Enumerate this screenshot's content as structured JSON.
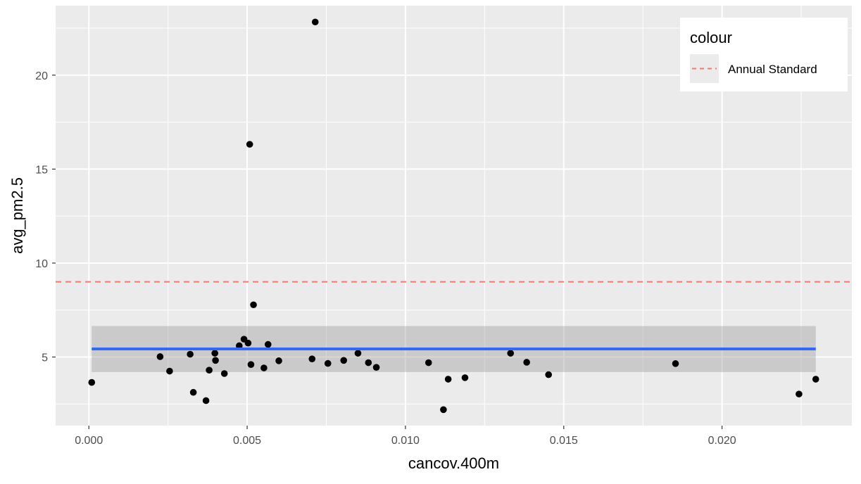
{
  "chart_data": {
    "type": "scatter",
    "xlabel": "cancov.400m",
    "ylabel": "avg_pm2.5",
    "xlim": [
      -0.00105,
      0.0241
    ],
    "ylim": [
      1.35,
      23.7
    ],
    "x_ticks": [
      0.0,
      0.005,
      0.01,
      0.015,
      0.02
    ],
    "x_tick_labels": [
      "0.000",
      "0.005",
      "0.010",
      "0.015",
      "0.020"
    ],
    "y_ticks": [
      5,
      10,
      15,
      20
    ],
    "y_tick_labels": [
      "5",
      "10",
      "15",
      "20"
    ],
    "grid": true,
    "points": [
      {
        "x": 9e-05,
        "y": 3.65
      },
      {
        "x": 0.00225,
        "y": 5.02
      },
      {
        "x": 0.00255,
        "y": 4.25
      },
      {
        "x": 0.0032,
        "y": 5.15
      },
      {
        "x": 0.0033,
        "y": 3.12
      },
      {
        "x": 0.0037,
        "y": 2.68
      },
      {
        "x": 0.0038,
        "y": 4.3
      },
      {
        "x": 0.00398,
        "y": 5.2
      },
      {
        "x": 0.004,
        "y": 4.82
      },
      {
        "x": 0.00428,
        "y": 4.12
      },
      {
        "x": 0.00475,
        "y": 5.6
      },
      {
        "x": 0.0049,
        "y": 5.95
      },
      {
        "x": 0.00503,
        "y": 5.74
      },
      {
        "x": 0.00508,
        "y": 16.32
      },
      {
        "x": 0.00512,
        "y": 4.6
      },
      {
        "x": 0.0052,
        "y": 7.78
      },
      {
        "x": 0.00553,
        "y": 4.42
      },
      {
        "x": 0.00566,
        "y": 5.67
      },
      {
        "x": 0.006,
        "y": 4.8
      },
      {
        "x": 0.00705,
        "y": 4.9
      },
      {
        "x": 0.00715,
        "y": 22.83
      },
      {
        "x": 0.00755,
        "y": 4.66
      },
      {
        "x": 0.00805,
        "y": 4.82
      },
      {
        "x": 0.0085,
        "y": 5.2
      },
      {
        "x": 0.00883,
        "y": 4.7
      },
      {
        "x": 0.00908,
        "y": 4.45
      },
      {
        "x": 0.01073,
        "y": 4.7
      },
      {
        "x": 0.0112,
        "y": 2.2
      },
      {
        "x": 0.01135,
        "y": 3.82
      },
      {
        "x": 0.01188,
        "y": 3.9
      },
      {
        "x": 0.01332,
        "y": 5.2
      },
      {
        "x": 0.01383,
        "y": 4.72
      },
      {
        "x": 0.01452,
        "y": 4.06
      },
      {
        "x": 0.01853,
        "y": 4.65
      },
      {
        "x": 0.02243,
        "y": 3.03
      },
      {
        "x": 0.02296,
        "y": 3.82
      }
    ],
    "smooth_line": {
      "x": [
        9e-05,
        0.02296
      ],
      "y": 5.43,
      "ci_low": 4.2,
      "ci_high": 6.65,
      "color": "#3366FF",
      "band_color": "#999999"
    },
    "reference_line": {
      "y": 9.0,
      "style": "dashed",
      "color": "#F8766D"
    },
    "legend": {
      "title": "colour",
      "position": "top-right",
      "entries": [
        {
          "label": "Annual Standard",
          "color": "#F8766D",
          "style": "dashed"
        }
      ]
    },
    "colors": {
      "panel_background": "#EBEBEB",
      "grid": "#FFFFFF",
      "point": "#000000"
    }
  }
}
